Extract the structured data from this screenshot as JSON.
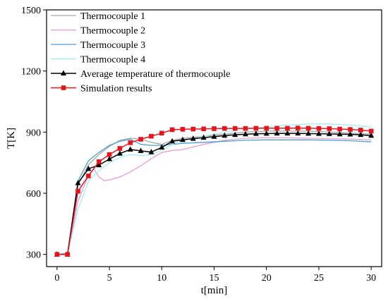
{
  "chart_data": {
    "type": "line",
    "title": "",
    "xlabel": "t[min]",
    "ylabel": "T[K]",
    "xlim": [
      -1,
      31
    ],
    "ylim": [
      240,
      1500
    ],
    "xticks": [
      0,
      5,
      10,
      15,
      20,
      25,
      30
    ],
    "yticks": [
      300,
      600,
      900,
      1200,
      1500
    ],
    "grid": false,
    "legend_position": "top-left",
    "series": [
      {
        "name": "Thermocouple 1",
        "color": "#a6a6a6",
        "marker": "none",
        "x": [
          0,
          1,
          2,
          3,
          4,
          5,
          6,
          7,
          8,
          9,
          10,
          11,
          12,
          14,
          16,
          18,
          20,
          22,
          24,
          26,
          28,
          30
        ],
        "y": [
          300,
          305,
          640,
          740,
          790,
          830,
          860,
          870,
          865,
          850,
          840,
          860,
          870,
          880,
          890,
          900,
          905,
          905,
          905,
          900,
          895,
          890
        ]
      },
      {
        "name": "Thermocouple 2",
        "color": "#e99bd3",
        "marker": "none",
        "x": [
          0,
          1,
          2,
          3,
          3.5,
          4,
          4.5,
          5,
          6,
          7,
          8,
          9,
          10,
          11,
          12,
          14,
          16,
          18,
          20,
          22,
          24,
          26,
          28,
          30
        ],
        "y": [
          300,
          300,
          560,
          690,
          720,
          680,
          662,
          665,
          680,
          705,
          735,
          770,
          800,
          810,
          815,
          840,
          860,
          870,
          872,
          872,
          870,
          868,
          866,
          862
        ]
      },
      {
        "name": "Thermocouple 3",
        "color": "#4a9ed6",
        "marker": "none",
        "x": [
          0,
          1,
          2,
          3,
          4,
          5,
          6,
          7,
          8,
          9,
          10,
          11,
          12,
          14,
          16,
          18,
          20,
          22,
          24,
          26,
          28,
          30
        ],
        "y": [
          300,
          305,
          660,
          760,
          800,
          835,
          855,
          865,
          840,
          835,
          835,
          840,
          845,
          850,
          855,
          860,
          862,
          862,
          862,
          860,
          858,
          852
        ]
      },
      {
        "name": "Thermocouple 4",
        "color": "#a4eef0",
        "marker": "none",
        "x": [
          0,
          1,
          2,
          3,
          4,
          5,
          6,
          7,
          8,
          9,
          10,
          11,
          12,
          14,
          16,
          18,
          20,
          22,
          24,
          26,
          28,
          30
        ],
        "y": [
          300,
          300,
          520,
          660,
          710,
          750,
          775,
          790,
          785,
          790,
          810,
          840,
          860,
          880,
          900,
          915,
          925,
          935,
          940,
          940,
          935,
          925
        ]
      },
      {
        "name": "Average temperature of thermocouple",
        "color": "#000000",
        "marker": "triangle",
        "x": [
          0,
          1,
          2,
          3,
          4,
          5,
          6,
          7,
          8,
          9,
          10,
          11,
          12,
          13,
          14,
          15,
          16,
          17,
          18,
          19,
          20,
          21,
          22,
          23,
          24,
          25,
          26,
          27,
          28,
          29,
          30
        ],
        "y": [
          300,
          300,
          650,
          720,
          738,
          768,
          795,
          815,
          808,
          802,
          825,
          855,
          862,
          868,
          873,
          878,
          883,
          887,
          890,
          892,
          893,
          894,
          894,
          894,
          893,
          892,
          891,
          890,
          889,
          887,
          883
        ]
      },
      {
        "name": "Simulation results",
        "color": "#e8141c",
        "marker": "square",
        "x": [
          0,
          1,
          2,
          3,
          4,
          5,
          6,
          7,
          8,
          9,
          10,
          11,
          12,
          13,
          14,
          15,
          16,
          17,
          18,
          19,
          20,
          21,
          22,
          23,
          24,
          25,
          26,
          27,
          28,
          29,
          30
        ],
        "y": [
          300,
          300,
          610,
          685,
          755,
          790,
          820,
          848,
          865,
          880,
          895,
          912,
          914,
          915,
          916,
          917,
          918,
          918,
          918,
          919,
          919,
          919,
          919,
          920,
          919,
          918,
          917,
          915,
          913,
          910,
          905
        ]
      }
    ]
  }
}
